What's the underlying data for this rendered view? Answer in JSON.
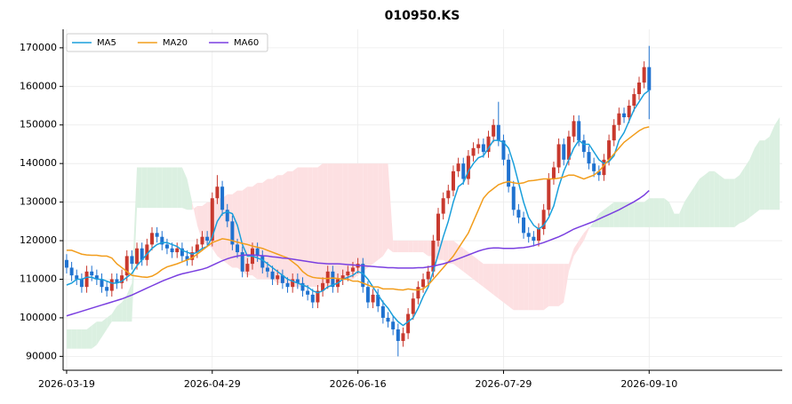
{
  "chart_data": {
    "type": "candlestick",
    "title": "010950.KS",
    "xticks": [
      {
        "value": 0,
        "label": "2026-03-19"
      },
      {
        "value": 29,
        "label": "2026-04-29"
      },
      {
        "value": 58,
        "label": "2026-06-16"
      },
      {
        "value": 87,
        "label": "2026-07-29"
      },
      {
        "value": 116,
        "label": "2026-09-10"
      }
    ],
    "xlim": [
      -0.7,
      142.5
    ],
    "ylim": [
      86400,
      174800
    ],
    "yticks": [
      90000,
      100000,
      110000,
      120000,
      130000,
      140000,
      150000,
      160000,
      170000
    ],
    "grid": true,
    "legend": "upper left",
    "up_color": "#c8392e",
    "down_color": "#1f72d0",
    "open": [
      115000,
      113000,
      111000,
      110000,
      108000,
      112000,
      111000,
      110000,
      108000,
      107000,
      110000,
      109000,
      111000,
      116000,
      114000,
      118000,
      115000,
      119000,
      122000,
      121000,
      119000,
      118000,
      117000,
      118000,
      116000,
      115000,
      117000,
      119000,
      121000,
      120000,
      131000,
      134000,
      128000,
      125000,
      119000,
      117000,
      112000,
      114000,
      118000,
      116000,
      113000,
      112000,
      110000,
      111000,
      109000,
      108000,
      110000,
      109000,
      107000,
      106000,
      104000,
      107000,
      109000,
      112000,
      108000,
      110000,
      111000,
      112000,
      113000,
      114000,
      108000,
      104000,
      106000,
      103000,
      100000,
      99000,
      97000,
      94000,
      96000,
      101000,
      105000,
      108000,
      110000,
      112000,
      120000,
      127000,
      131000,
      133000,
      138000,
      140000,
      136000,
      142000,
      144000,
      145000,
      143000,
      147000,
      150000,
      146000,
      141000,
      134000,
      128000,
      126000,
      122000,
      121000,
      120000,
      123000,
      128000,
      136000,
      139000,
      145000,
      141000,
      147000,
      151000,
      146000,
      143000,
      140000,
      138000,
      137000,
      141000,
      146000,
      150000,
      153000,
      152000,
      155000,
      158000,
      161000,
      165000
    ],
    "high": [
      116500,
      114500,
      112500,
      111500,
      113500,
      113500,
      112500,
      111500,
      109500,
      111500,
      111500,
      112500,
      117500,
      117500,
      119500,
      119500,
      120500,
      123500,
      123500,
      122500,
      120500,
      119500,
      119500,
      119500,
      117500,
      118500,
      120500,
      122500,
      122500,
      132500,
      137000,
      135500,
      129500,
      126500,
      120500,
      118500,
      115500,
      119500,
      119500,
      117500,
      114500,
      113500,
      112500,
      112500,
      110500,
      111500,
      111500,
      110500,
      108500,
      107500,
      108500,
      110500,
      113500,
      113500,
      111500,
      112500,
      113500,
      114500,
      115500,
      115500,
      109500,
      107500,
      107500,
      104500,
      101500,
      100500,
      98500,
      97500,
      102500,
      106500,
      109500,
      111500,
      113500,
      121500,
      128500,
      132500,
      134500,
      139500,
      141500,
      141500,
      143500,
      145500,
      146500,
      146500,
      148500,
      151500,
      156000,
      147500,
      142500,
      135500,
      129500,
      127500,
      123500,
      122500,
      124500,
      129500,
      137500,
      140500,
      146500,
      146500,
      148500,
      152500,
      152500,
      147500,
      144500,
      141500,
      139500,
      142500,
      147500,
      151500,
      154500,
      154500,
      156500,
      159500,
      162500,
      166500,
      170500
    ],
    "low": [
      111500,
      109500,
      108500,
      106500,
      106500,
      109500,
      108500,
      106500,
      105500,
      105500,
      107500,
      107500,
      109500,
      112500,
      112500,
      113500,
      113500,
      117500,
      119500,
      117500,
      116500,
      115500,
      115500,
      114500,
      113500,
      113500,
      115500,
      117500,
      118500,
      118500,
      129500,
      126500,
      123500,
      117500,
      115500,
      110500,
      110500,
      112500,
      114500,
      111500,
      110500,
      108500,
      108500,
      107500,
      106500,
      106500,
      107500,
      105500,
      104500,
      102500,
      102500,
      105500,
      107500,
      106500,
      106500,
      108500,
      109500,
      110500,
      111500,
      106500,
      102500,
      102500,
      101500,
      98500,
      97500,
      95500,
      90000,
      92500,
      94500,
      99500,
      103500,
      106500,
      108500,
      110500,
      118500,
      125500,
      129500,
      131500,
      136500,
      134500,
      134500,
      140500,
      142500,
      141500,
      141500,
      145500,
      144500,
      139500,
      132500,
      126500,
      124500,
      120500,
      119500,
      118500,
      118500,
      121500,
      126500,
      134500,
      137500,
      139500,
      139500,
      145500,
      144500,
      141500,
      138500,
      136500,
      135500,
      135500,
      139500,
      144500,
      148500,
      150500,
      150500,
      153500,
      156500,
      159500,
      151500
    ],
    "close": [
      113000,
      111000,
      110000,
      108000,
      112000,
      111000,
      110000,
      108000,
      107000,
      110000,
      109000,
      111000,
      116000,
      114000,
      118000,
      115000,
      119000,
      122000,
      121000,
      119000,
      118000,
      117000,
      118000,
      116000,
      115000,
      117000,
      119000,
      121000,
      120000,
      131000,
      134000,
      128000,
      125000,
      119000,
      117000,
      112000,
      114000,
      118000,
      116000,
      113000,
      112000,
      110000,
      111000,
      109000,
      108000,
      110000,
      109000,
      107000,
      106000,
      104000,
      107000,
      109000,
      112000,
      108000,
      110000,
      111000,
      112000,
      113000,
      114000,
      108000,
      104000,
      106000,
      103000,
      100000,
      99000,
      97000,
      94000,
      96000,
      101000,
      105000,
      108000,
      110000,
      112000,
      120000,
      127000,
      131000,
      133000,
      138000,
      140000,
      136000,
      142000,
      144000,
      145000,
      143000,
      147000,
      150000,
      146000,
      141000,
      134000,
      128000,
      126000,
      122000,
      121000,
      120000,
      123000,
      128000,
      136000,
      139000,
      145000,
      141000,
      147000,
      151000,
      146000,
      143000,
      140000,
      138000,
      137000,
      141000,
      146000,
      150000,
      153000,
      152000,
      155000,
      158000,
      161000,
      165000,
      159000
    ],
    "series": [
      {
        "name": "MA5",
        "color": "#1a9fdb",
        "values": [
          108500,
          109000,
          110000,
          110000,
          110500,
          110500,
          110000,
          110000,
          109500,
          109000,
          109000,
          109500,
          110500,
          111500,
          113500,
          115000,
          116500,
          118000,
          119000,
          119500,
          119500,
          119000,
          118500,
          117500,
          117000,
          116500,
          117000,
          118000,
          118500,
          121000,
          125000,
          127000,
          127500,
          127000,
          124000,
          119000,
          116000,
          116000,
          115500,
          115000,
          114000,
          113000,
          112000,
          111000,
          110000,
          109500,
          109000,
          108500,
          108000,
          107000,
          106500,
          107000,
          108000,
          108500,
          109000,
          110000,
          110500,
          111000,
          112000,
          111500,
          110000,
          108000,
          106000,
          104000,
          102500,
          100500,
          99000,
          98000,
          99000,
          100000,
          102500,
          105500,
          108000,
          112000,
          116500,
          121000,
          125000,
          130000,
          134000,
          135000,
          138000,
          140000,
          141500,
          142000,
          144000,
          146000,
          146000,
          145500,
          144000,
          140000,
          135000,
          130000,
          126000,
          124000,
          123000,
          124000,
          126000,
          129000,
          134000,
          138000,
          141000,
          144000,
          146000,
          145000,
          145000,
          143000,
          141000,
          140000,
          140500,
          142000,
          146000,
          148000,
          151000,
          154000,
          156000,
          158000,
          159000
        ]
      },
      {
        "name": "MA20",
        "color": "#f29d1c",
        "values": [
          117500,
          117500,
          117000,
          116500,
          116300,
          116200,
          116200,
          116000,
          116000,
          115500,
          114000,
          113000,
          112000,
          111000,
          110800,
          110600,
          110500,
          110800,
          111500,
          112500,
          113200,
          113600,
          114000,
          114500,
          115000,
          115500,
          116500,
          117500,
          118500,
          119500,
          120000,
          120500,
          120300,
          120000,
          119600,
          119300,
          119000,
          118600,
          118300,
          118000,
          117500,
          117000,
          116500,
          116000,
          115500,
          114500,
          113500,
          112000,
          111000,
          110500,
          110300,
          110200,
          110200,
          110300,
          110200,
          110000,
          110000,
          109500,
          109500,
          109000,
          108500,
          108000,
          108000,
          107500,
          107500,
          107500,
          107300,
          107200,
          107500,
          107300,
          107200,
          107500,
          108500,
          110000,
          111500,
          113000,
          114500,
          116000,
          118000,
          120000,
          122000,
          125000,
          128000,
          131000,
          132500,
          133500,
          134500,
          135000,
          135300,
          135000,
          134800,
          135000,
          135500,
          135600,
          135800,
          136000,
          136000,
          136000,
          136200,
          136500,
          137000,
          137000,
          136500,
          136000,
          136500,
          137000,
          138000,
          139500,
          141000,
          142500,
          144000,
          145500,
          146500,
          147500,
          148500,
          149200,
          149500
        ]
      },
      {
        "name": "MA60",
        "color": "#7a3fe0",
        "values": [
          100500,
          100900,
          101300,
          101700,
          102100,
          102500,
          102900,
          103300,
          103700,
          104100,
          104500,
          104900,
          105400,
          105900,
          106500,
          107100,
          107700,
          108300,
          108900,
          109500,
          110000,
          110500,
          111000,
          111400,
          111700,
          112000,
          112300,
          112600,
          113000,
          113600,
          114200,
          114800,
          115300,
          115700,
          116000,
          116200,
          116300,
          116300,
          116200,
          116100,
          116000,
          115800,
          115700,
          115500,
          115400,
          115200,
          115000,
          114800,
          114600,
          114400,
          114200,
          114100,
          114000,
          114000,
          114000,
          113900,
          113800,
          113700,
          113600,
          113500,
          113400,
          113300,
          113200,
          113100,
          113000,
          113000,
          112900,
          112900,
          112900,
          112900,
          113000,
          113000,
          113200,
          113400,
          113700,
          114000,
          114400,
          114800,
          115300,
          115800,
          116300,
          116800,
          117300,
          117700,
          118000,
          118100,
          118100,
          118000,
          118000,
          118000,
          118100,
          118200,
          118400,
          118700,
          119100,
          119500,
          120000,
          120500,
          121000,
          121600,
          122300,
          123000,
          123500,
          124000,
          124500,
          125000,
          125600,
          126200,
          126800,
          127400,
          128000,
          128700,
          129400,
          130100,
          130900,
          131800,
          133000
        ]
      }
    ],
    "cloud": {
      "span_a": [
        97000,
        97000,
        97000,
        97000,
        97000,
        98000,
        99000,
        99000,
        100000,
        101000,
        103000,
        104000,
        106000,
        109000,
        139000,
        139000,
        139000,
        139000,
        139000,
        139000,
        139000,
        139000,
        139000,
        139000,
        136000,
        130000,
        124000,
        120000,
        119000,
        118000,
        116000,
        115000,
        114000,
        113000,
        113000,
        112000,
        111000,
        111000,
        110000,
        110000,
        110000,
        110000,
        109000,
        109000,
        109000,
        108000,
        108000,
        108000,
        108000,
        108000,
        108000,
        108000,
        108000,
        109000,
        109000,
        110000,
        110000,
        110000,
        111000,
        112000,
        113000,
        114000,
        115000,
        116000,
        118000,
        117000,
        117000,
        117000,
        117000,
        117000,
        117000,
        117000,
        116000,
        116000,
        115000,
        115000,
        114000,
        114000,
        113000,
        112000,
        111000,
        110000,
        109000,
        108000,
        107000,
        106000,
        105000,
        104000,
        103000,
        102000,
        102000,
        102000,
        102000,
        102000,
        102000,
        102000,
        103000,
        103000,
        103000,
        104000,
        112000,
        116000,
        118000,
        120000,
        123000,
        125000,
        127000,
        128000,
        129000,
        130000,
        130000,
        130000,
        130000,
        130000,
        130000,
        130000,
        131000,
        131000,
        131000,
        131000,
        130000,
        127000,
        127000,
        130000,
        132000,
        134000,
        136000,
        137000,
        138000,
        138000,
        137000,
        136000,
        136000,
        136000,
        137000,
        139000,
        141000,
        144000,
        146000,
        146000,
        147000,
        150000,
        152000
      ],
      "span_b": [
        92000,
        92000,
        92000,
        92000,
        92000,
        92000,
        93000,
        95000,
        97000,
        99000,
        99000,
        99000,
        99000,
        99000,
        128500,
        128500,
        128500,
        128500,
        128500,
        128500,
        128500,
        128500,
        128500,
        128500,
        128000,
        128000,
        129000,
        129000,
        130000,
        130000,
        131000,
        131000,
        132000,
        132000,
        133000,
        133000,
        134000,
        134000,
        135000,
        135000,
        136000,
        136000,
        137000,
        137000,
        138000,
        138000,
        139000,
        139000,
        139000,
        139000,
        139000,
        140000,
        140000,
        140000,
        140000,
        140000,
        140000,
        140000,
        140000,
        140000,
        140000,
        140000,
        140000,
        140000,
        140000,
        120000,
        120000,
        120000,
        120000,
        120000,
        120000,
        120000,
        120000,
        120000,
        120000,
        120000,
        120000,
        120000,
        119000,
        118000,
        117000,
        116000,
        115000,
        114000,
        114000,
        114000,
        114000,
        114000,
        114000,
        114000,
        114000,
        114000,
        114000,
        114000,
        114000,
        114000,
        114000,
        114000,
        114000,
        114000,
        114000,
        118000,
        120000,
        122000,
        123500,
        123500,
        123500,
        123500,
        123500,
        123500,
        123500,
        123500,
        123500,
        123500,
        123500,
        123500,
        123500,
        123500,
        123500,
        123500,
        123500,
        123500,
        123500,
        123500,
        123500,
        123500,
        123500,
        123500,
        123500,
        123500,
        123500,
        123500,
        123500,
        123500,
        124500,
        125000,
        126000,
        127000,
        128000,
        128000,
        128000,
        128000,
        128000
      ],
      "up_color": "#dbf0e1",
      "down_color": "#fde0e2"
    }
  }
}
